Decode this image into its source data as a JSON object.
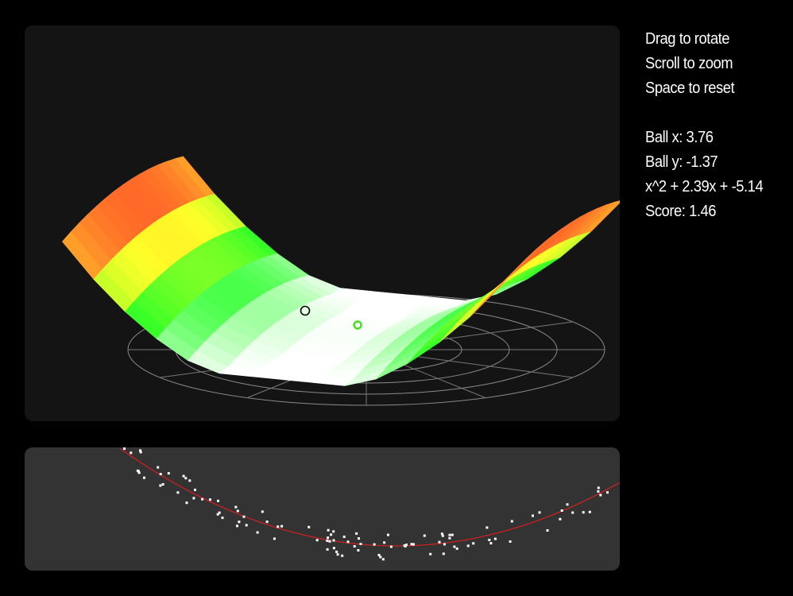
{
  "instructions": {
    "rotate": "Drag to rotate",
    "zoom": "Scroll to zoom",
    "reset": "Space to reset"
  },
  "stats": {
    "ball_x": "Ball x: 3.76",
    "ball_y": "Ball y: -1.37",
    "equation": "x^2 + 2.39x + -5.14",
    "score": "Score: 1.46"
  },
  "colors": {
    "background": "#000000",
    "viewport_bg": "#141414",
    "plot_bg": "#333333",
    "surface_low": "#ffffff",
    "surface_mid": "#22ee22",
    "surface_high": "#ffff22",
    "surface_peak": "#ff2222",
    "fit_curve": "#cc2020",
    "points": "#ffffff",
    "ball_black": "#000000",
    "ball_green": "#44dd22"
  }
}
